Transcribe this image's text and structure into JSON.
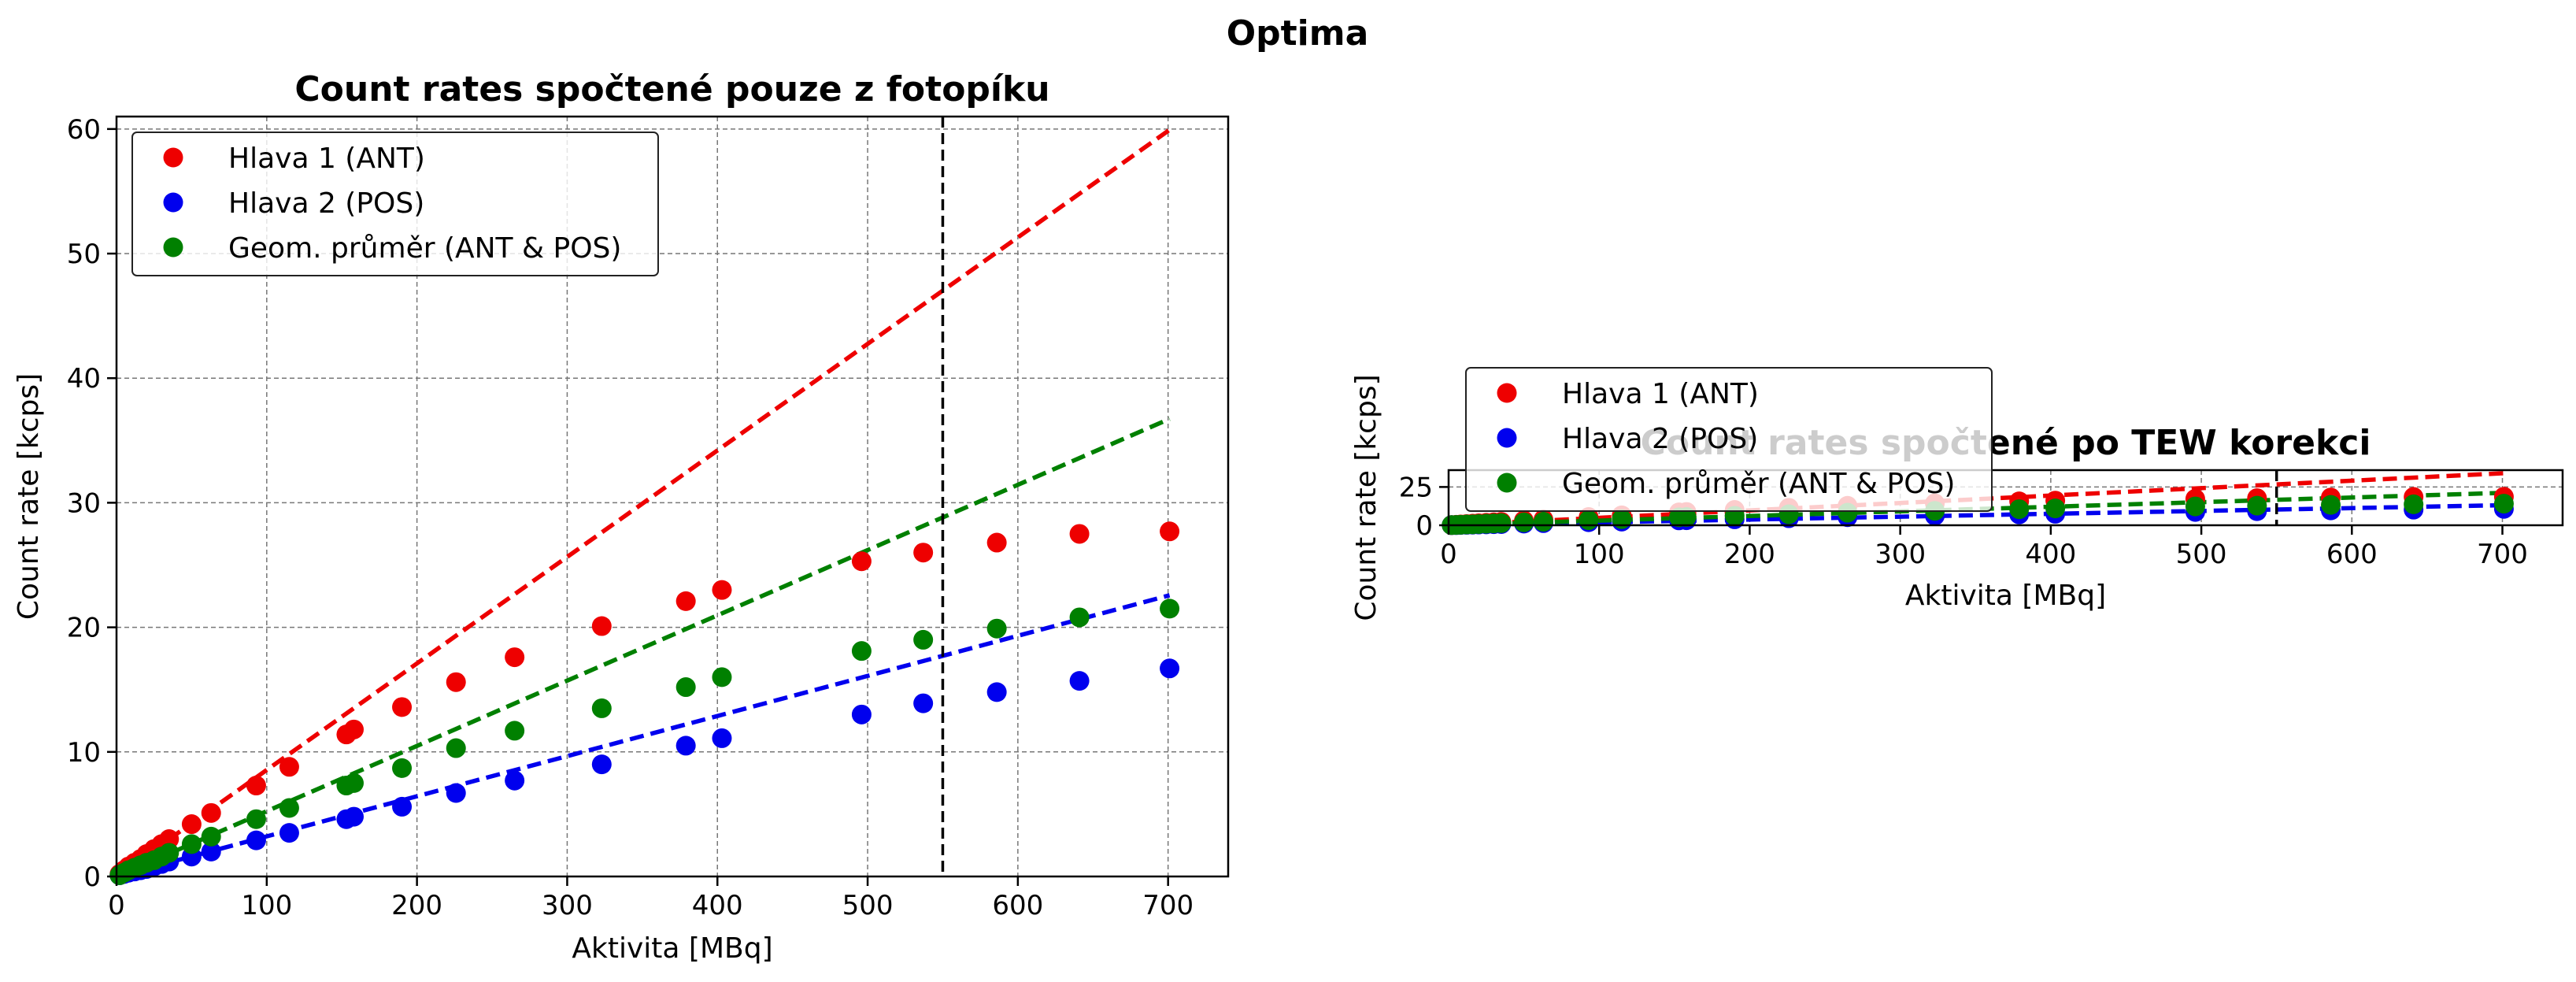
{
  "figure": {
    "suptitle": "Optima"
  },
  "colors": {
    "ant": "#ee0000",
    "pos": "#0000ee",
    "geo": "#008000",
    "vline": "#000000",
    "grid": "#777777"
  },
  "chart_data": [
    {
      "type": "scatter",
      "title": "Count rates spočtené pouze z fotopíku",
      "xlabel": "Aktivita [MBq]",
      "ylabel": "Count rate [kcps]",
      "xlim": [
        0,
        740
      ],
      "ylim": [
        0,
        61
      ],
      "xticks": [
        0,
        100,
        200,
        300,
        400,
        500,
        600,
        700
      ],
      "yticks": [
        0,
        10,
        20,
        30,
        40,
        50,
        60
      ],
      "grid": true,
      "legend_position": "top-left",
      "vline_x": 550,
      "x": [
        2,
        5,
        8,
        12,
        16,
        20,
        25,
        30,
        35,
        50,
        63,
        93,
        115,
        153,
        158,
        190,
        226,
        265,
        323,
        379,
        403,
        496,
        537,
        586,
        641,
        701
      ],
      "series": [
        {
          "name": "Hlava 1 (ANT)",
          "color": "#ee0000",
          "values": [
            0.2,
            0.5,
            0.8,
            1.1,
            1.4,
            1.8,
            2.2,
            2.6,
            3.0,
            4.2,
            5.1,
            7.3,
            8.8,
            11.4,
            11.8,
            13.6,
            15.6,
            17.6,
            20.1,
            22.1,
            23.0,
            25.3,
            26.0,
            26.8,
            27.5,
            27.7
          ],
          "fit_slope": 0.0855
        },
        {
          "name": "Hlava 2 (POS)",
          "color": "#0000ee",
          "values": [
            0.1,
            0.2,
            0.3,
            0.4,
            0.5,
            0.6,
            0.8,
            1.0,
            1.2,
            1.6,
            2.0,
            2.9,
            3.5,
            4.6,
            4.8,
            5.6,
            6.7,
            7.7,
            9.0,
            10.5,
            11.1,
            13.0,
            13.9,
            14.8,
            15.7,
            16.7
          ],
          "fit_slope": 0.0322
        },
        {
          "name": "Geom. průměr (ANT & POS)",
          "color": "#008000",
          "values": [
            0.1,
            0.3,
            0.5,
            0.7,
            0.9,
            1.1,
            1.3,
            1.6,
            1.9,
            2.6,
            3.2,
            4.6,
            5.5,
            7.3,
            7.5,
            8.7,
            10.3,
            11.7,
            13.5,
            15.2,
            16.0,
            18.1,
            19.0,
            19.9,
            20.8,
            21.5
          ],
          "fit_slope": 0.0524
        }
      ]
    },
    {
      "type": "scatter",
      "title": "Count rates spočtené po TEW korekci",
      "xlabel": "Aktivita [MBq]",
      "ylabel": "Count rate [kcps]",
      "xlim": [
        0,
        740
      ],
      "ylim": [
        0,
        36
      ],
      "xticks": [
        0,
        100,
        200,
        300,
        400,
        500,
        600,
        700
      ],
      "yticks": [
        0,
        25
      ],
      "grid": true,
      "legend_position": "top-left (overlapping title)",
      "vline_x": 550,
      "x": [
        2,
        5,
        8,
        12,
        16,
        20,
        25,
        30,
        35,
        50,
        63,
        93,
        115,
        153,
        158,
        190,
        226,
        265,
        323,
        379,
        403,
        496,
        537,
        586,
        641,
        701
      ],
      "series": [
        {
          "name": "Hlava 1 (ANT)",
          "color": "#ee0000",
          "values": [
            0.1,
            0.3,
            0.5,
            0.8,
            1.0,
            1.3,
            1.6,
            1.9,
            2.2,
            3.1,
            3.8,
            5.4,
            6.5,
            8.4,
            8.7,
            10.0,
            11.4,
            12.7,
            14.3,
            15.6,
            16.1,
            17.3,
            17.7,
            18.1,
            18.5,
            18.6
          ],
          "fit_slope": 0.0485
        },
        {
          "name": "Hlava 2 (POS)",
          "color": "#0000ee",
          "values": [
            0.1,
            0.1,
            0.2,
            0.3,
            0.4,
            0.5,
            0.6,
            0.7,
            0.8,
            1.1,
            1.4,
            2.0,
            2.4,
            3.2,
            3.3,
            3.9,
            4.6,
            5.3,
            6.2,
            7.1,
            7.5,
            8.7,
            9.2,
            9.7,
            10.2,
            10.7
          ],
          "fit_slope": 0.0187
        },
        {
          "name": "Geom. průměr (ANT & POS)",
          "color": "#008000",
          "values": [
            0.1,
            0.2,
            0.3,
            0.5,
            0.6,
            0.8,
            1.0,
            1.2,
            1.4,
            1.9,
            2.3,
            3.3,
            4.0,
            5.2,
            5.4,
            6.2,
            7.2,
            8.2,
            9.4,
            10.5,
            11.0,
            12.3,
            12.8,
            13.3,
            13.7,
            14.1
          ],
          "fit_slope": 0.0302
        }
      ]
    }
  ]
}
